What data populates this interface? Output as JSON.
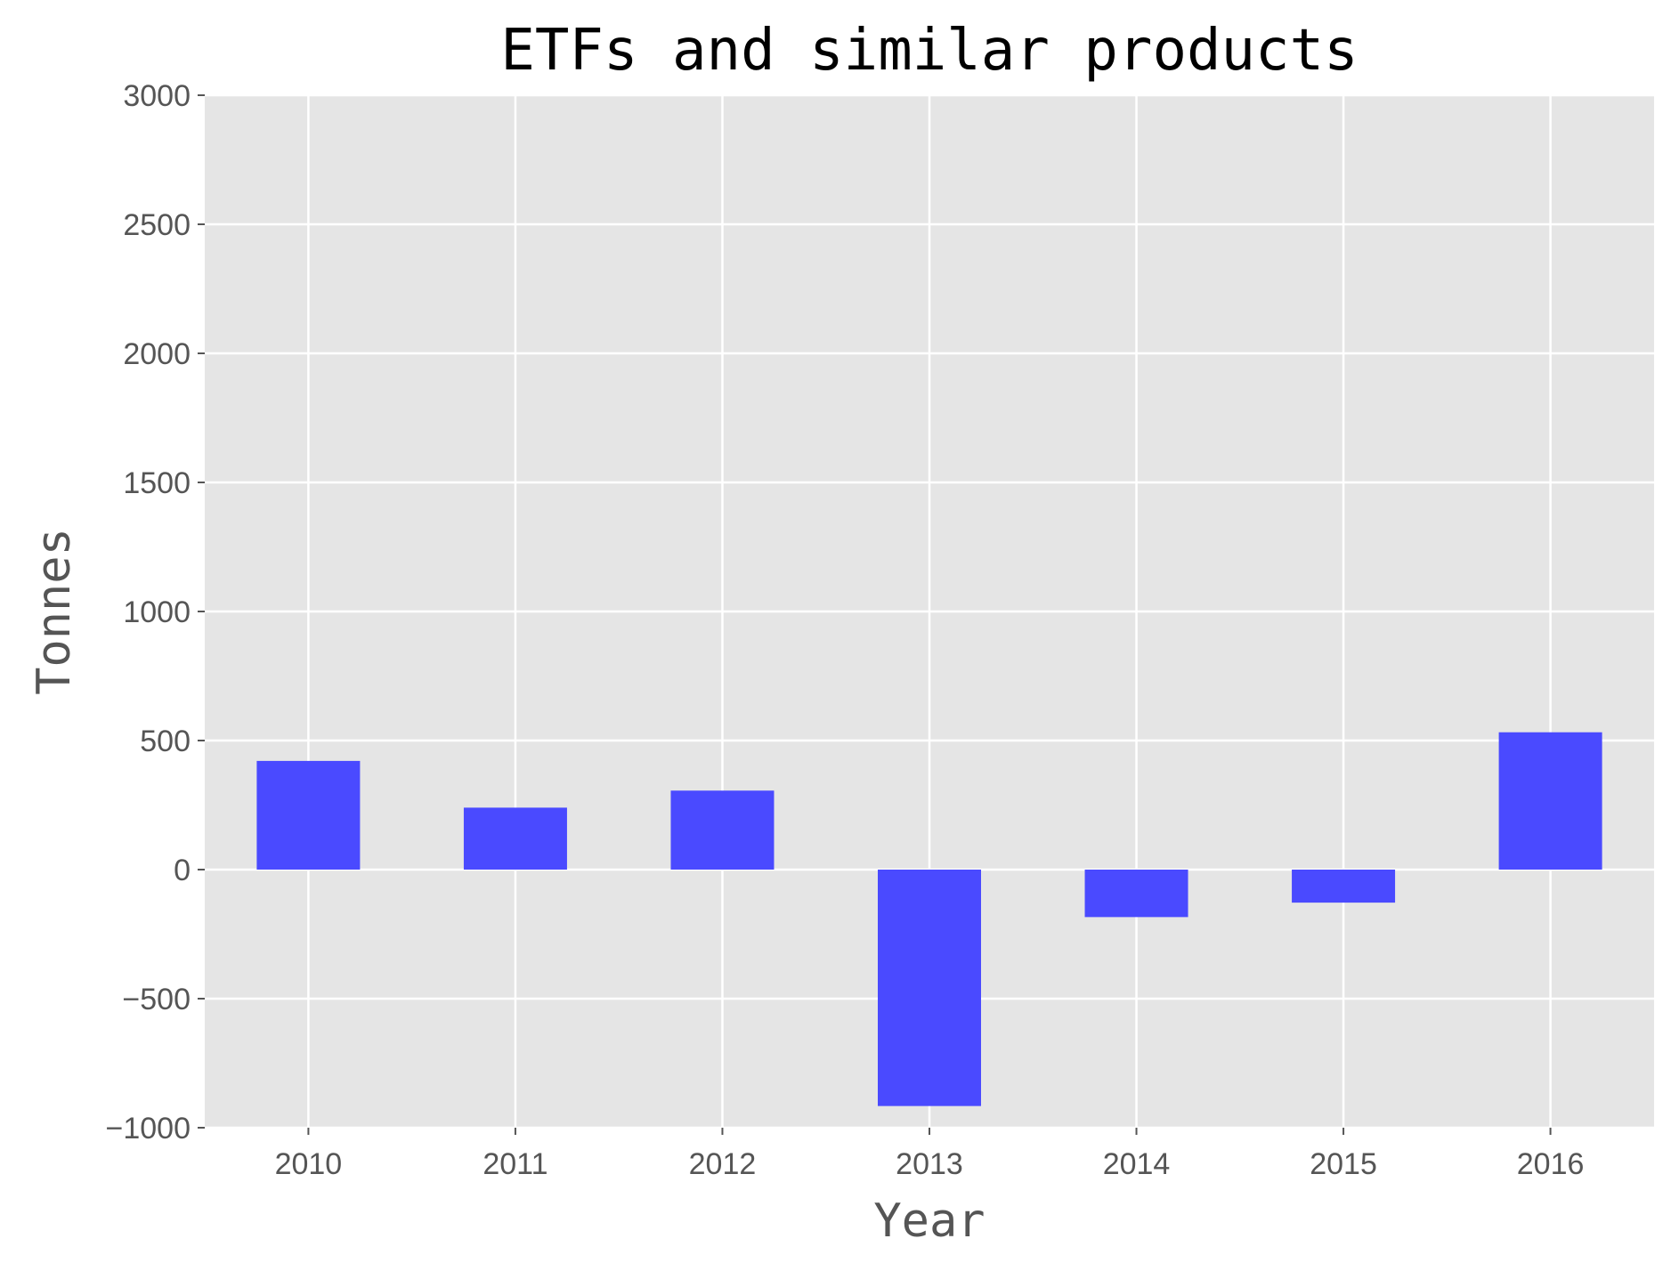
{
  "chart_data": {
    "type": "bar",
    "title": "ETFs and similar products",
    "xlabel": "Year",
    "ylabel": "Tonnes",
    "categories": [
      "2010",
      "2011",
      "2012",
      "2013",
      "2014",
      "2015",
      "2016"
    ],
    "values": [
      421,
      240,
      306,
      -916,
      -184,
      -128,
      532
    ],
    "ylim": [
      -1000,
      3000
    ],
    "yticks": [
      "3000",
      "2500",
      "2000",
      "1500",
      "1000",
      "500",
      "0",
      "−500",
      "−1000"
    ],
    "grid": true,
    "colors": {
      "bar": "#4a4aff",
      "plot_background": "#e5e5e5",
      "grid": "#ffffff",
      "tick": "#555555"
    }
  }
}
